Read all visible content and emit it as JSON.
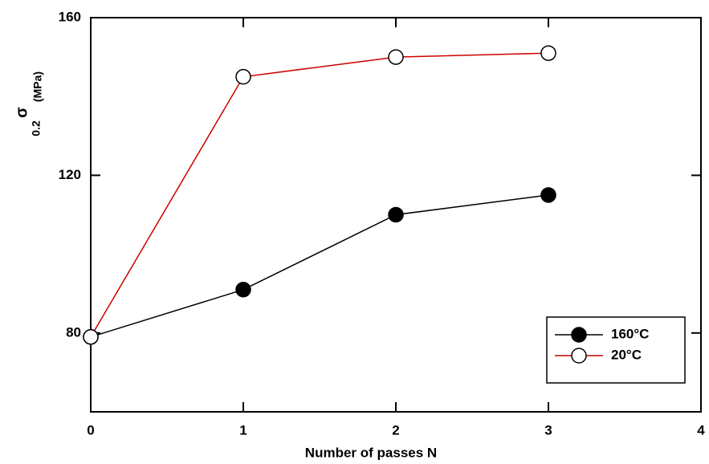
{
  "chart_data": {
    "type": "line",
    "xlabel": "Number of passes  N",
    "ylabel": "σ",
    "ylabel_subscript": "0.2",
    "ylabel_unit": "(MPa)",
    "xlim": [
      0,
      4
    ],
    "xticks": [
      0,
      1,
      2,
      3,
      4
    ],
    "ylim": [
      60,
      160
    ],
    "yticks": [
      80,
      120,
      160
    ],
    "legend": "lower right",
    "series": [
      {
        "name": "160°C",
        "color": "#000000",
        "marker": "filled",
        "x": [
          0,
          1,
          2,
          3
        ],
        "values": [
          79,
          91,
          110,
          115
        ]
      },
      {
        "name": "20°C",
        "color": "#cc0000",
        "marker": "open",
        "x": [
          0,
          1,
          2,
          3
        ],
        "values": [
          79,
          145,
          150,
          151
        ]
      }
    ]
  }
}
